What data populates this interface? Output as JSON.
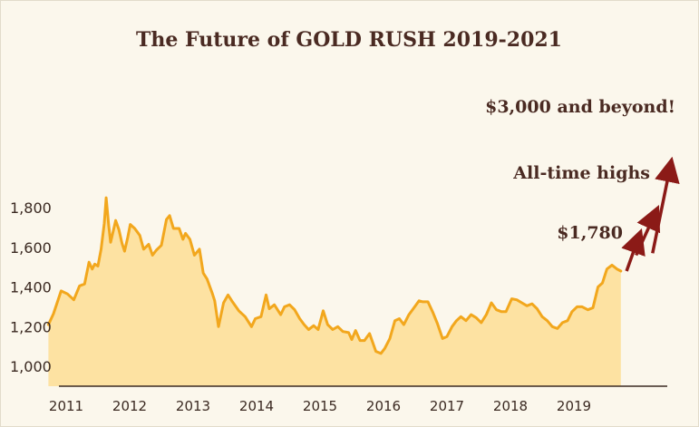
{
  "colors": {
    "background": "#fbf7ec",
    "line": "#f2a71d",
    "fill": "#fde2a2",
    "text": "#4a2a22",
    "arrow": "#8b1a17",
    "axis": "#3b2a22"
  },
  "chart_data": {
    "type": "area",
    "title": "The Future of GOLD RUSH 2019-2021",
    "xlabel": "",
    "ylabel": "",
    "ylim": [
      900,
      1950
    ],
    "xlim": [
      2010.6,
      2020.6
    ],
    "xticks": [
      2011,
      2012,
      2013,
      2014,
      2015,
      2016,
      2017,
      2018,
      2019
    ],
    "xtick_labels": [
      "2011",
      "2012",
      "2013",
      "2014",
      "2015",
      "2016",
      "2017",
      "2018",
      "2019"
    ],
    "yticks": [
      1000,
      1200,
      1400,
      1600,
      1800
    ],
    "ytick_labels": [
      "1,000",
      "1,200",
      "1,400",
      "1,600",
      "1,800"
    ],
    "grid": false,
    "series": [
      {
        "values": [
          [
            2010.72,
            1210
          ],
          [
            2010.8,
            1265
          ],
          [
            2010.92,
            1380
          ],
          [
            2011.02,
            1365
          ],
          [
            2011.12,
            1335
          ],
          [
            2011.21,
            1405
          ],
          [
            2011.29,
            1415
          ],
          [
            2011.36,
            1525
          ],
          [
            2011.41,
            1490
          ],
          [
            2011.45,
            1515
          ],
          [
            2011.5,
            1505
          ],
          [
            2011.55,
            1590
          ],
          [
            2011.6,
            1720
          ],
          [
            2011.63,
            1850
          ],
          [
            2011.67,
            1710
          ],
          [
            2011.7,
            1625
          ],
          [
            2011.74,
            1680
          ],
          [
            2011.78,
            1735
          ],
          [
            2011.83,
            1690
          ],
          [
            2011.88,
            1620
          ],
          [
            2011.92,
            1580
          ],
          [
            2011.97,
            1650
          ],
          [
            2012.01,
            1715
          ],
          [
            2012.08,
            1695
          ],
          [
            2012.16,
            1660
          ],
          [
            2012.22,
            1590
          ],
          [
            2012.3,
            1615
          ],
          [
            2012.36,
            1560
          ],
          [
            2012.42,
            1585
          ],
          [
            2012.5,
            1610
          ],
          [
            2012.58,
            1740
          ],
          [
            2012.63,
            1760
          ],
          [
            2012.69,
            1695
          ],
          [
            2012.78,
            1695
          ],
          [
            2012.84,
            1640
          ],
          [
            2012.88,
            1670
          ],
          [
            2012.95,
            1640
          ],
          [
            2013.02,
            1560
          ],
          [
            2013.1,
            1590
          ],
          [
            2013.16,
            1470
          ],
          [
            2013.22,
            1440
          ],
          [
            2013.3,
            1370
          ],
          [
            2013.34,
            1330
          ],
          [
            2013.4,
            1200
          ],
          [
            2013.48,
            1320
          ],
          [
            2013.55,
            1360
          ],
          [
            2013.62,
            1325
          ],
          [
            2013.72,
            1280
          ],
          [
            2013.82,
            1250
          ],
          [
            2013.92,
            1200
          ],
          [
            2013.98,
            1240
          ],
          [
            2014.07,
            1250
          ],
          [
            2014.15,
            1360
          ],
          [
            2014.2,
            1290
          ],
          [
            2014.28,
            1310
          ],
          [
            2014.38,
            1260
          ],
          [
            2014.44,
            1300
          ],
          [
            2014.52,
            1310
          ],
          [
            2014.6,
            1285
          ],
          [
            2014.68,
            1240
          ],
          [
            2014.75,
            1210
          ],
          [
            2014.82,
            1185
          ],
          [
            2014.9,
            1205
          ],
          [
            2014.97,
            1185
          ],
          [
            2015.05,
            1280
          ],
          [
            2015.12,
            1210
          ],
          [
            2015.2,
            1185
          ],
          [
            2015.28,
            1200
          ],
          [
            2015.36,
            1175
          ],
          [
            2015.45,
            1170
          ],
          [
            2015.5,
            1135
          ],
          [
            2015.56,
            1180
          ],
          [
            2015.63,
            1130
          ],
          [
            2015.7,
            1130
          ],
          [
            2015.78,
            1165
          ],
          [
            2015.88,
            1075
          ],
          [
            2015.96,
            1065
          ],
          [
            2016.02,
            1090
          ],
          [
            2016.1,
            1140
          ],
          [
            2016.18,
            1230
          ],
          [
            2016.25,
            1240
          ],
          [
            2016.32,
            1210
          ],
          [
            2016.4,
            1260
          ],
          [
            2016.48,
            1295
          ],
          [
            2016.56,
            1330
          ],
          [
            2016.62,
            1325
          ],
          [
            2016.7,
            1325
          ],
          [
            2016.78,
            1270
          ],
          [
            2016.85,
            1215
          ],
          [
            2016.93,
            1140
          ],
          [
            2017.0,
            1150
          ],
          [
            2017.08,
            1200
          ],
          [
            2017.15,
            1230
          ],
          [
            2017.22,
            1250
          ],
          [
            2017.3,
            1230
          ],
          [
            2017.38,
            1260
          ],
          [
            2017.46,
            1245
          ],
          [
            2017.54,
            1220
          ],
          [
            2017.62,
            1260
          ],
          [
            2017.7,
            1320
          ],
          [
            2017.78,
            1285
          ],
          [
            2017.86,
            1275
          ],
          [
            2017.93,
            1275
          ],
          [
            2018.02,
            1340
          ],
          [
            2018.1,
            1335
          ],
          [
            2018.18,
            1320
          ],
          [
            2018.26,
            1305
          ],
          [
            2018.34,
            1315
          ],
          [
            2018.42,
            1290
          ],
          [
            2018.5,
            1250
          ],
          [
            2018.58,
            1230
          ],
          [
            2018.66,
            1200
          ],
          [
            2018.74,
            1190
          ],
          [
            2018.82,
            1220
          ],
          [
            2018.9,
            1230
          ],
          [
            2018.97,
            1275
          ],
          [
            2019.05,
            1300
          ],
          [
            2019.13,
            1300
          ],
          [
            2019.22,
            1285
          ],
          [
            2019.3,
            1295
          ],
          [
            2019.38,
            1400
          ],
          [
            2019.45,
            1420
          ],
          [
            2019.52,
            1490
          ],
          [
            2019.6,
            1510
          ],
          [
            2019.68,
            1490
          ],
          [
            2019.74,
            1480
          ]
        ]
      }
    ],
    "annotations": [
      {
        "text": "$1,780",
        "x": 2019.83,
        "y": 1480,
        "x2": 2020.02,
        "y2": 1650
      },
      {
        "text": "All-time highs",
        "x": 2019.98,
        "y": 1560,
        "x2": 2020.28,
        "y2": 1770
      },
      {
        "text": "$3,000 and beyond!",
        "x": 2020.24,
        "y": 1570,
        "x2": 2020.52,
        "y2": 2010
      }
    ]
  }
}
